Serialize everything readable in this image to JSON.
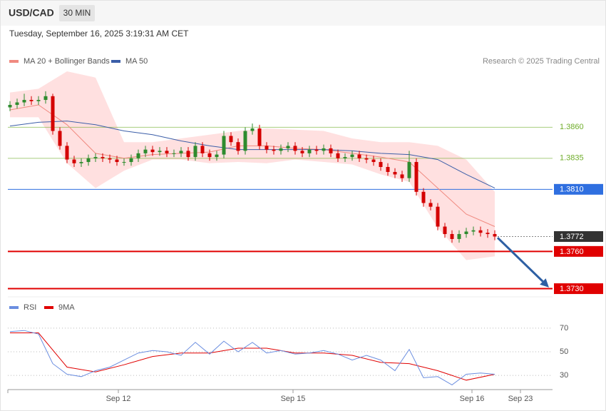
{
  "header": {
    "symbol": "USD/CAD",
    "timeframe": "30 MIN",
    "timestamp": "Tuesday, September 16, 2025 3:19:31 AM CET",
    "credit": "Research © 2025 Trading Central"
  },
  "chart_data": [
    {
      "type": "candlestick",
      "xlim": [
        -0.3,
        76.1
      ],
      "ylim": [
        1.3724,
        1.3905
      ],
      "x": [
        0,
        1,
        2,
        3,
        4,
        5,
        6,
        7,
        8,
        9,
        10,
        11,
        12,
        13,
        14,
        15,
        16,
        17,
        18,
        19,
        20,
        21,
        22,
        23,
        24,
        25,
        26,
        27,
        28,
        29,
        30,
        31,
        32,
        33,
        34,
        35,
        36,
        37,
        38,
        39,
        40,
        41,
        42,
        43,
        44,
        45,
        46,
        47,
        48,
        49,
        50,
        51,
        52,
        53,
        54,
        55,
        56,
        57,
        58,
        59,
        60,
        61,
        62,
        63,
        64,
        65,
        66,
        67,
        68
      ],
      "open": [
        1.3876,
        1.3878,
        1.388,
        1.3882,
        1.3881,
        1.3882,
        1.3885,
        1.3857,
        1.3845,
        1.3834,
        1.3831,
        1.3832,
        1.3835,
        1.3836,
        1.3835,
        1.3834,
        1.3832,
        1.3832,
        1.3835,
        1.3839,
        1.3842,
        1.384,
        1.3841,
        1.3839,
        1.3839,
        1.3841,
        1.3836,
        1.3845,
        1.3839,
        1.3836,
        1.3838,
        1.3853,
        1.3848,
        1.3841,
        1.3857,
        1.3859,
        1.3845,
        1.3842,
        1.3841,
        1.3843,
        1.3845,
        1.3841,
        1.3839,
        1.3842,
        1.3841,
        1.3843,
        1.3839,
        1.3835,
        1.3836,
        1.3838,
        1.3835,
        1.3834,
        1.3832,
        1.3828,
        1.3824,
        1.3822,
        1.3819,
        1.3832,
        1.3808,
        1.3799,
        1.3796,
        1.378,
        1.3774,
        1.377,
        1.3774,
        1.3776,
        1.3777,
        1.3775,
        1.3774
      ],
      "high": [
        1.3881,
        1.3883,
        1.3887,
        1.3885,
        1.3885,
        1.3889,
        1.3887,
        1.386,
        1.3848,
        1.3837,
        1.3835,
        1.3838,
        1.3839,
        1.3839,
        1.3838,
        1.3837,
        1.3835,
        1.3838,
        1.3842,
        1.3845,
        1.3845,
        1.3844,
        1.3844,
        1.3842,
        1.3844,
        1.3844,
        1.3848,
        1.3848,
        1.3842,
        1.3841,
        1.3857,
        1.3856,
        1.3851,
        1.386,
        1.3863,
        1.3862,
        1.3848,
        1.3845,
        1.3846,
        1.3848,
        1.3848,
        1.3844,
        1.3845,
        1.3845,
        1.3846,
        1.3846,
        1.3842,
        1.3839,
        1.3841,
        1.3841,
        1.3838,
        1.3837,
        1.3835,
        1.3831,
        1.3827,
        1.3825,
        1.3841,
        1.3835,
        1.3811,
        1.3802,
        1.3799,
        1.3783,
        1.3777,
        1.3777,
        1.3779,
        1.378,
        1.378,
        1.3778,
        1.3777
      ],
      "low": [
        1.3873,
        1.3875,
        1.3877,
        1.3878,
        1.3878,
        1.3879,
        1.3854,
        1.3842,
        1.3831,
        1.3828,
        1.3828,
        1.3829,
        1.3832,
        1.3832,
        1.3831,
        1.3829,
        1.3829,
        1.3829,
        1.3832,
        1.3836,
        1.3837,
        1.3837,
        1.3836,
        1.3836,
        1.3836,
        1.3833,
        1.3833,
        1.3836,
        1.3833,
        1.3833,
        1.3835,
        1.3845,
        1.3838,
        1.3838,
        1.3854,
        1.3842,
        1.3839,
        1.3838,
        1.3838,
        1.384,
        1.3838,
        1.3836,
        1.3836,
        1.3838,
        1.3838,
        1.3836,
        1.3832,
        1.3832,
        1.3833,
        1.3832,
        1.3831,
        1.3829,
        1.3825,
        1.3821,
        1.3819,
        1.3816,
        1.3816,
        1.3805,
        1.3796,
        1.3793,
        1.3777,
        1.3771,
        1.3767,
        1.3767,
        1.3771,
        1.3773,
        1.3772,
        1.3771,
        1.3769
      ],
      "close": [
        1.3878,
        1.388,
        1.3882,
        1.3881,
        1.3882,
        1.3885,
        1.3857,
        1.3845,
        1.3834,
        1.3831,
        1.3832,
        1.3835,
        1.3836,
        1.3835,
        1.3834,
        1.3832,
        1.3832,
        1.3835,
        1.3839,
        1.3842,
        1.384,
        1.3841,
        1.3839,
        1.3839,
        1.3841,
        1.3836,
        1.3845,
        1.3839,
        1.3836,
        1.3838,
        1.3853,
        1.3848,
        1.3841,
        1.3857,
        1.3859,
        1.3845,
        1.3842,
        1.3841,
        1.3843,
        1.3845,
        1.3841,
        1.3839,
        1.3842,
        1.3841,
        1.3843,
        1.3839,
        1.3835,
        1.3836,
        1.3838,
        1.3835,
        1.3834,
        1.3832,
        1.3828,
        1.3824,
        1.3822,
        1.3819,
        1.3832,
        1.3808,
        1.3799,
        1.3796,
        1.378,
        1.3774,
        1.377,
        1.3774,
        1.3776,
        1.3777,
        1.3775,
        1.3774,
        1.3772
      ],
      "up_color": "#2e8b2e",
      "down_color": "#d40000",
      "series": [
        {
          "name": "MA 20 + Bollinger Bands",
          "color": "#f08a80",
          "band_color": "#ffd6d6",
          "x": [
            0,
            4,
            8,
            12,
            16,
            20,
            24,
            28,
            32,
            36,
            40,
            44,
            48,
            52,
            56,
            60,
            64,
            68
          ],
          "values": [
            1.3874,
            1.3878,
            1.3862,
            1.3839,
            1.3835,
            1.3838,
            1.3839,
            1.384,
            1.3845,
            1.3845,
            1.3843,
            1.3842,
            1.3839,
            1.3836,
            1.3832,
            1.3811,
            1.379,
            1.378
          ],
          "upper": [
            1.3888,
            1.3891,
            1.3905,
            1.39,
            1.3848,
            1.3848,
            1.3851,
            1.3854,
            1.3857,
            1.3859,
            1.3858,
            1.3857,
            1.3851,
            1.3848,
            1.3848,
            1.3845,
            1.3834,
            1.3808
          ],
          "lower": [
            1.3868,
            1.3868,
            1.3831,
            1.3811,
            1.3825,
            1.3834,
            1.3834,
            1.3831,
            1.3832,
            1.3831,
            1.3834,
            1.3832,
            1.383,
            1.3822,
            1.3816,
            1.3779,
            1.3753,
            1.3756
          ]
        },
        {
          "name": "MA 50",
          "color": "#3b5ea8",
          "x": [
            0,
            4,
            8,
            12,
            16,
            20,
            24,
            28,
            32,
            36,
            40,
            44,
            48,
            52,
            56,
            60,
            64,
            68
          ],
          "values": [
            1.3861,
            1.3864,
            1.3865,
            1.3862,
            1.3857,
            1.3854,
            1.3849,
            1.3845,
            1.3842,
            1.3842,
            1.3842,
            1.3842,
            1.3841,
            1.3839,
            1.3838,
            1.3834,
            1.3822,
            1.3811
          ]
        }
      ],
      "levels": [
        {
          "value": 1.386,
          "label": "1.3860",
          "color": "#6fad2a",
          "line": "thin",
          "box": false
        },
        {
          "value": 1.3835,
          "label": "1.3835",
          "color": "#6fad2a",
          "line": "thin",
          "box": false
        },
        {
          "value": 1.381,
          "label": "1.3810",
          "color": "#2f6fe0",
          "line": "solid",
          "box": true
        },
        {
          "value": 1.3772,
          "label": "1.3772",
          "color": "#333333",
          "line": "dotted",
          "box": true
        },
        {
          "value": 1.376,
          "label": "1.3760",
          "color": "#e00000",
          "line": "thick",
          "box": true
        },
        {
          "value": 1.373,
          "label": "1.3730",
          "color": "#e00000",
          "line": "thick",
          "box": true
        }
      ],
      "arrow": {
        "x": [
          68.4,
          75.6
        ],
        "y": [
          1.3771,
          1.3731
        ],
        "color": "#2d5fa3"
      }
    },
    {
      "type": "line",
      "xlim": [
        -0.3,
        76.1
      ],
      "ylim": [
        18,
        82
      ],
      "yticks": [
        30,
        50,
        70
      ],
      "xticks": [
        {
          "value": 15.2,
          "label": "Sep 12"
        },
        {
          "value": 39.7,
          "label": "Sep 15"
        },
        {
          "value": 64.8,
          "label": "Sep 16"
        },
        {
          "value": 71.6,
          "label": "Sep 23"
        }
      ],
      "series": [
        {
          "name": "RSI",
          "color": "#6b8ee0",
          "x": [
            0,
            2,
            4,
            6,
            8,
            10,
            12,
            14,
            16,
            18,
            20,
            22,
            24,
            26,
            28,
            30,
            32,
            34,
            36,
            38,
            40,
            42,
            44,
            46,
            48,
            50,
            52,
            54,
            56,
            58,
            60,
            62,
            64,
            66,
            68
          ],
          "values": [
            67,
            68,
            65,
            40,
            31,
            29,
            34,
            37,
            43,
            49,
            51,
            50,
            47,
            58,
            48,
            59,
            50,
            58,
            49,
            51,
            48,
            49,
            51,
            48,
            43,
            47,
            43,
            34,
            52,
            28,
            29,
            22,
            31,
            32,
            31
          ]
        },
        {
          "name": "9MA",
          "color": "#e00000",
          "x": [
            0,
            4,
            8,
            12,
            16,
            20,
            24,
            28,
            32,
            36,
            40,
            44,
            48,
            52,
            56,
            60,
            64,
            68
          ],
          "values": [
            66,
            66,
            37,
            33,
            39,
            46,
            49,
            49,
            53,
            53,
            49,
            49,
            47,
            41,
            40,
            34,
            26,
            31
          ]
        }
      ]
    }
  ]
}
